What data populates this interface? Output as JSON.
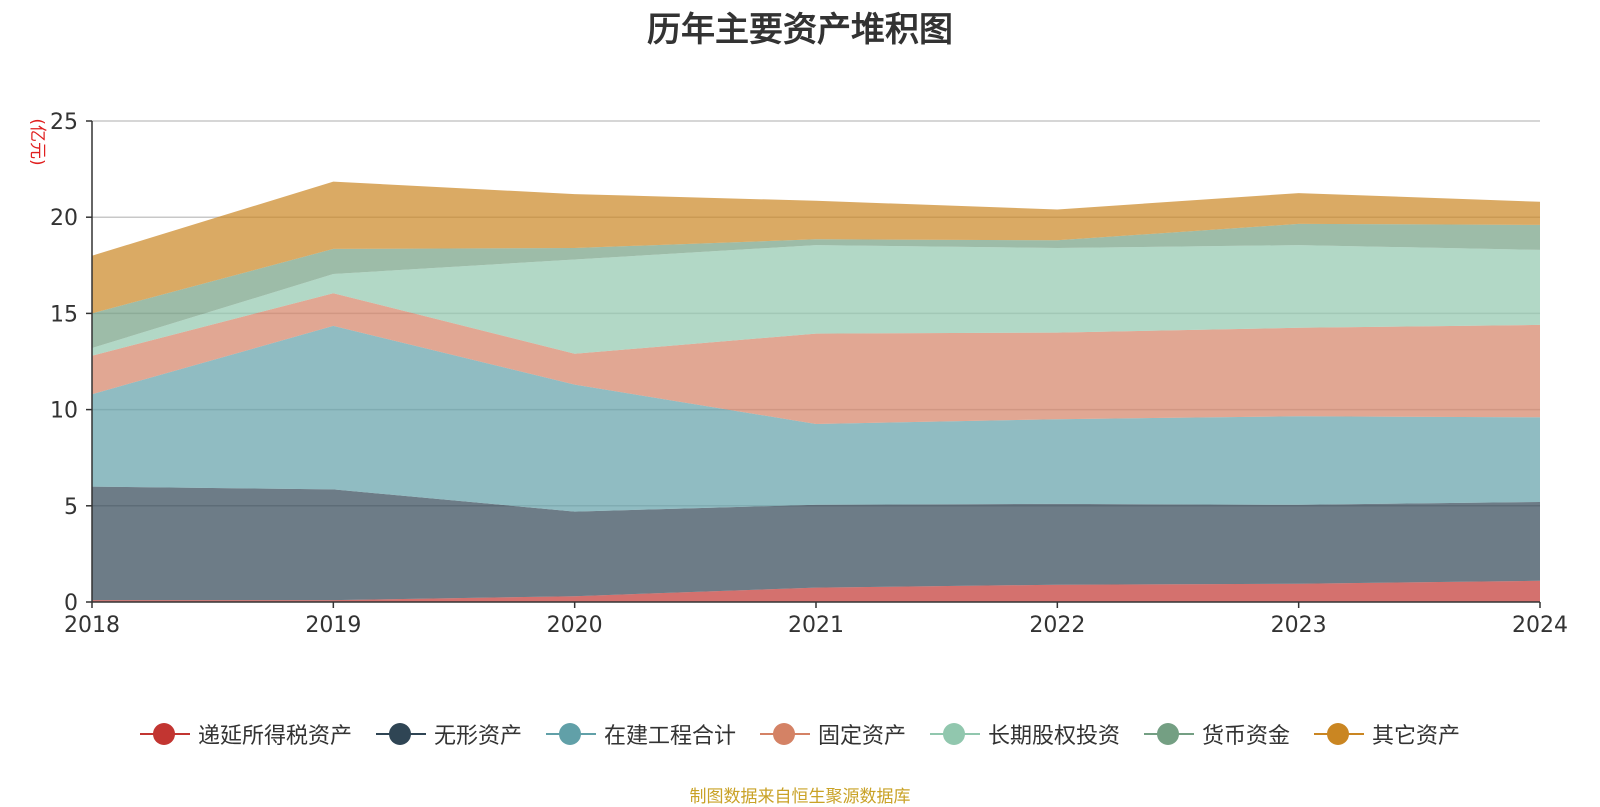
{
  "chart_data": {
    "type": "area",
    "stacked": true,
    "title": "历年主要资产堆积图",
    "ylabel": "(亿元)",
    "xlabel": "",
    "x": [
      "2018",
      "2019",
      "2020",
      "2021",
      "2022",
      "2023",
      "2024"
    ],
    "ylim": [
      0,
      25
    ],
    "yticks": [
      0,
      5,
      10,
      15,
      20,
      25
    ],
    "grid": true,
    "legend_position": "bottom",
    "series": [
      {
        "name": "递延所得税资产",
        "color": "#c23531",
        "values": [
          0.1,
          0.1,
          0.3,
          0.75,
          0.9,
          0.95,
          1.1
        ]
      },
      {
        "name": "无形资产",
        "color": "#2f4554",
        "values": [
          5.9,
          5.75,
          4.4,
          4.3,
          4.2,
          4.1,
          4.1
        ]
      },
      {
        "name": "在建工程合计",
        "color": "#61a0a8",
        "values": [
          4.8,
          8.5,
          6.6,
          4.2,
          4.4,
          4.6,
          4.4
        ]
      },
      {
        "name": "固定资产",
        "color": "#d48265",
        "values": [
          2.0,
          1.7,
          1.6,
          4.7,
          4.5,
          4.6,
          4.8
        ]
      },
      {
        "name": "长期股权投资",
        "color": "#91c7ae",
        "values": [
          0.4,
          1.0,
          4.9,
          4.6,
          4.4,
          4.3,
          3.9
        ]
      },
      {
        "name": "货币资金",
        "color": "#749f83",
        "values": [
          1.8,
          1.3,
          0.6,
          0.3,
          0.4,
          1.1,
          1.3
        ]
      },
      {
        "name": "其它资产",
        "color": "#ca8622",
        "values": [
          3.0,
          3.5,
          2.8,
          2.0,
          1.6,
          1.6,
          1.2
        ]
      }
    ]
  },
  "source_note": "制图数据来自恒生聚源数据库"
}
